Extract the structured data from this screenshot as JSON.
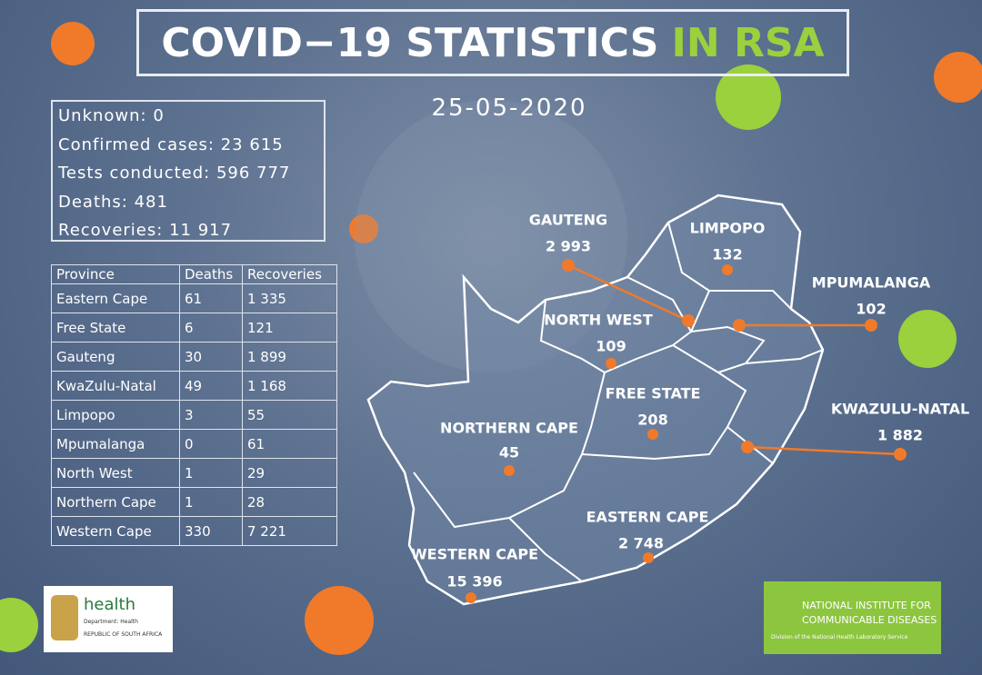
{
  "title": {
    "main": "COVID−19 STATISTICS",
    "highlight": "IN RSA"
  },
  "date": "25-05-2020",
  "summary": [
    {
      "label": "Unknown:",
      "value": "0"
    },
    {
      "label": "Confirmed cases:",
      "value": "23 615"
    },
    {
      "label": "Tests conducted:",
      "value": "596 777"
    },
    {
      "label": "Deaths:",
      "value": "481"
    },
    {
      "label": "Recoveries:",
      "value": "11 917"
    }
  ],
  "table": {
    "headers": [
      "Province",
      "Deaths",
      "Recoveries"
    ],
    "rows": [
      [
        "Eastern Cape",
        "61",
        "1 335"
      ],
      [
        "Free State",
        "6",
        "121"
      ],
      [
        "Gauteng",
        "30",
        "1 899"
      ],
      [
        "KwaZulu-Natal",
        "49",
        "1 168"
      ],
      [
        "Limpopo",
        "3",
        "55"
      ],
      [
        "Mpumalanga",
        "0",
        "61"
      ],
      [
        "North West",
        "1",
        "29"
      ],
      [
        "Northern Cape",
        "1",
        "28"
      ],
      [
        "Western Cape",
        "330",
        "7 221"
      ]
    ]
  },
  "map": {
    "provinces": [
      {
        "name": "GAUTENG",
        "cases": "2 993"
      },
      {
        "name": "LIMPOPO",
        "cases": "132"
      },
      {
        "name": "MPUMALANGA",
        "cases": "102"
      },
      {
        "name": "NORTH WEST",
        "cases": "109"
      },
      {
        "name": "FREE STATE",
        "cases": "208"
      },
      {
        "name": "KWAZULU-NATAL",
        "cases": "1 882"
      },
      {
        "name": "NORTHERN CAPE",
        "cases": "45"
      },
      {
        "name": "EASTERN CAPE",
        "cases": "2 748"
      },
      {
        "name": "WESTERN CAPE",
        "cases": "15 396"
      }
    ]
  },
  "logos": {
    "health": {
      "name": "health",
      "dept": "Department: Health",
      "country": "REPUBLIC OF SOUTH AFRICA"
    },
    "nicd": {
      "line1": "NATIONAL INSTITUTE FOR",
      "line2": "COMMUNICABLE DISEASES",
      "sub": "Division of the National Health Laboratory Service"
    }
  }
}
